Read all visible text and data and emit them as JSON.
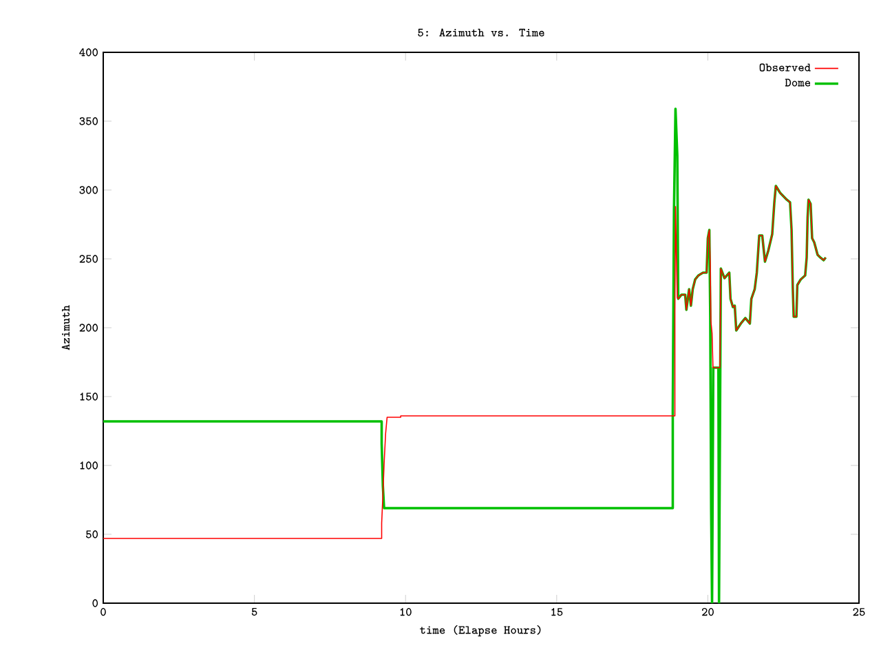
{
  "chart_data": {
    "type": "line",
    "title": "5: Azimuth vs. Time",
    "xlabel": "time (Elapse Hours)",
    "ylabel": "Azimuth",
    "xlim": [
      0,
      25
    ],
    "ylim": [
      0,
      400
    ],
    "xticks": [
      0,
      5,
      10,
      15,
      20,
      25
    ],
    "yticks": [
      0,
      50,
      100,
      150,
      200,
      250,
      300,
      350,
      400
    ],
    "grid": false,
    "legend": "top right",
    "marker": "none",
    "line_style": "solid",
    "series": [
      {
        "name": "Observed",
        "color": "#ff0000",
        "x": [
          0,
          9.21,
          9.21,
          9.25,
          9.29,
          9.34,
          9.39,
          9.84,
          9.84,
          18.91,
          18.91,
          18.93,
          18.96,
          18.99,
          19.02,
          19.13,
          19.25,
          19.29,
          19.38,
          19.44,
          19.5,
          19.58,
          19.69,
          19.84,
          19.96,
          20.0,
          20.05,
          20.08,
          20.1,
          20.14,
          20.17,
          20.4,
          20.43,
          20.48,
          20.55,
          20.71,
          20.75,
          20.83,
          20.89,
          20.94,
          21.09,
          21.24,
          21.39,
          21.44,
          21.55,
          21.62,
          21.7,
          21.8,
          21.89,
          22.0,
          22.13,
          22.2,
          22.25,
          22.39,
          22.61,
          22.72,
          22.77,
          22.81,
          22.84,
          22.93,
          22.96,
          23.07,
          23.22,
          23.27,
          23.3,
          23.33,
          23.4,
          23.45,
          23.52,
          23.63,
          23.72,
          23.83,
          23.9
        ],
        "values": [
          47,
          47,
          58,
          78,
          101,
          123,
          135,
          135,
          136,
          136,
          211,
          288,
          253,
          222,
          221,
          224,
          224,
          213,
          228,
          216,
          228,
          235,
          238,
          240,
          240,
          265,
          271,
          245,
          205,
          196,
          171,
          171,
          243,
          240,
          236,
          240,
          221,
          215,
          216,
          198,
          203,
          207,
          203,
          221,
          228,
          240,
          267,
          267,
          248,
          256,
          268,
          291,
          303,
          298,
          293,
          291,
          271,
          229,
          208,
          208,
          231,
          235,
          238,
          251,
          280,
          293,
          290,
          265,
          262,
          253,
          251,
          249,
          251
        ]
      },
      {
        "name": "Dome",
        "color": "#00c000",
        "x": [
          0,
          9.21,
          9.21,
          9.25,
          9.29,
          18.84,
          18.84,
          18.88,
          18.93,
          18.99,
          19.02,
          19.13,
          19.25,
          19.29,
          19.38,
          19.44,
          19.5,
          19.58,
          19.69,
          19.84,
          19.96,
          20.0,
          20.05,
          20.08,
          20.11,
          20.14,
          20.18,
          20.35,
          20.37,
          20.4,
          20.43,
          20.48,
          20.55,
          20.71,
          20.75,
          20.83,
          20.89,
          20.94,
          21.09,
          21.24,
          21.39,
          21.44,
          21.55,
          21.62,
          21.7,
          21.8,
          21.89,
          22.0,
          22.13,
          22.2,
          22.25,
          22.39,
          22.61,
          22.72,
          22.77,
          22.81,
          22.84,
          22.93,
          22.96,
          23.07,
          23.22,
          23.27,
          23.3,
          23.33,
          23.4,
          23.45,
          23.52,
          23.63,
          23.72,
          23.83,
          23.9
        ],
        "values": [
          132,
          132,
          116,
          85,
          69,
          69,
          140,
          285,
          359,
          325,
          221,
          224,
          224,
          213,
          228,
          216,
          228,
          235,
          238,
          240,
          240,
          265,
          271,
          208,
          68,
          0,
          171,
          171,
          0,
          122,
          243,
          240,
          236,
          240,
          221,
          215,
          216,
          198,
          203,
          207,
          203,
          221,
          228,
          240,
          267,
          267,
          248,
          256,
          268,
          291,
          303,
          298,
          293,
          291,
          271,
          229,
          208,
          208,
          231,
          235,
          238,
          251,
          280,
          293,
          290,
          265,
          262,
          253,
          251,
          249,
          251
        ]
      }
    ]
  }
}
